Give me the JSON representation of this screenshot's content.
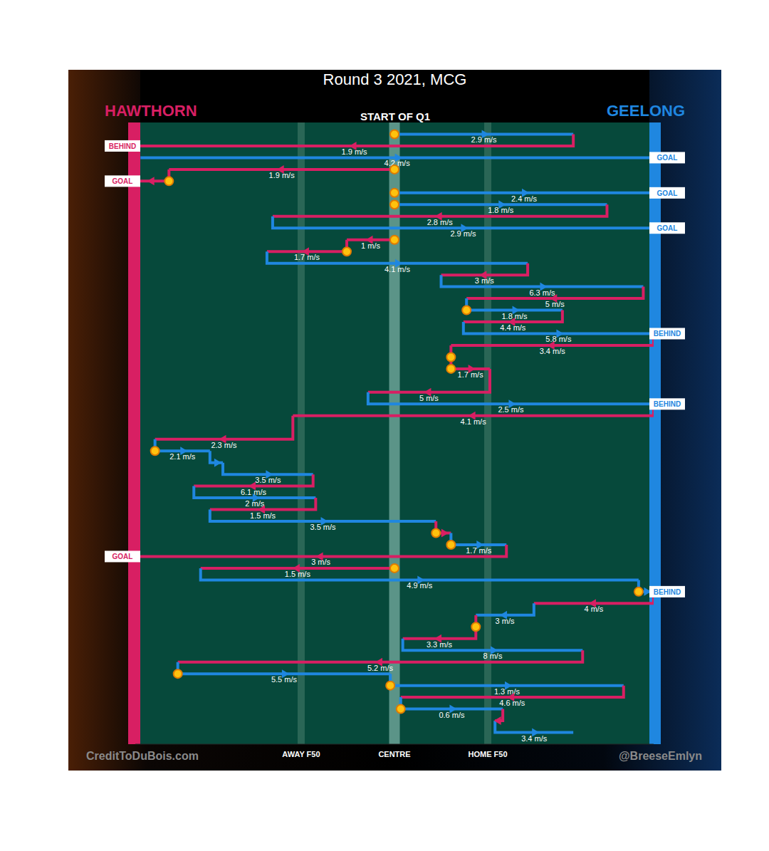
{
  "chart_data": {
    "type": "possession_chain",
    "title": "Round 3 2021, MCG",
    "subtitle": "START OF Q1",
    "series": [
      {
        "name": "HAWTHORN",
        "color": "#d81f63"
      },
      {
        "name": "GEELONG",
        "color": "#1f87e0"
      }
    ],
    "xlim": [
      0,
      100
    ],
    "xticks": [
      {
        "value": 32,
        "label": "AWAY F50"
      },
      {
        "value": 50,
        "label": "CENTRE"
      },
      {
        "value": 68,
        "label": "HOME F50"
      }
    ],
    "ylim": [
      -1,
      52
    ],
    "grid": true,
    "tick_labels": "x",
    "credits": [
      "CreditToDuBois.com",
      "@BreeseEmlyn"
    ],
    "chains": [
      {
        "team": "GEELONG",
        "y": 0,
        "x": [
          50,
          84.5
        ],
        "label": "2.9 m/s",
        "marker": "circle"
      },
      {
        "team": "HAWTHORN",
        "y": 1,
        "x": [
          84.5,
          0
        ],
        "label": "1.9 m/s",
        "outcome": "BEHIND"
      },
      {
        "team": "GEELONG",
        "y": 2,
        "x": [
          1,
          100
        ],
        "label": "4.2 m/s",
        "outcome": "GOAL"
      },
      {
        "team": "HAWTHORN",
        "y": 3,
        "x": [
          50,
          6.5
        ],
        "label": "1.9 m/s",
        "marker": "circle"
      },
      {
        "team": "HAWTHORN",
        "y": 4,
        "x": [
          6.5,
          0
        ],
        "marker": "circle",
        "outcome": "GOAL"
      },
      {
        "team": "GEELONG",
        "y": 5,
        "x": [
          50,
          100
        ],
        "label": "2.4 m/s",
        "marker": "circle",
        "outcome": "GOAL"
      },
      {
        "team": "GEELONG",
        "y": 6,
        "x": [
          50,
          91
        ],
        "label": "1.8 m/s",
        "marker": "circle"
      },
      {
        "team": "HAWTHORN",
        "y": 7,
        "x": [
          91,
          26.5
        ],
        "label": "2.8 m/s"
      },
      {
        "team": "GEELONG",
        "y": 8,
        "x": [
          26.5,
          100
        ],
        "label": "2.9 m/s",
        "outcome": "GOAL"
      },
      {
        "team": "HAWTHORN",
        "y": 9,
        "x": [
          50,
          40.8
        ],
        "label": "1 m/s",
        "marker": "circle"
      },
      {
        "team": "HAWTHORN",
        "y": 10,
        "x": [
          40.8,
          25.4
        ],
        "label": "1.7 m/s",
        "marker": "circle"
      },
      {
        "team": "GEELONG",
        "y": 11,
        "x": [
          25.4,
          75.7
        ],
        "label": "4.1 m/s"
      },
      {
        "team": "HAWTHORN",
        "y": 12,
        "x": [
          75.7,
          59
        ],
        "label": "3 m/s"
      },
      {
        "team": "GEELONG",
        "y": 13,
        "x": [
          59,
          98
        ],
        "label": "6.3 m/s"
      },
      {
        "team": "HAWTHORN",
        "y": 14,
        "x": [
          98,
          63.9
        ],
        "label": "5 m/s"
      },
      {
        "team": "GEELONG",
        "y": 15,
        "x": [
          63.9,
          82.4
        ],
        "label": "1.8 m/s",
        "marker": "circle"
      },
      {
        "team": "HAWTHORN",
        "y": 16,
        "x": [
          82.4,
          63.3
        ],
        "label": "4.4 m/s"
      },
      {
        "team": "GEELONG",
        "y": 17,
        "x": [
          63.3,
          100
        ],
        "label": "5.8 m/s",
        "outcome": "BEHIND"
      },
      {
        "team": "HAWTHORN",
        "y": 18,
        "x": [
          100,
          60.9
        ],
        "label": "3.4 m/s"
      },
      {
        "team": "HAWTHORN",
        "y": 19,
        "x": [
          60.9,
          60.9
        ],
        "marker": "circle"
      },
      {
        "team": "HAWTHORN",
        "y": 20,
        "x": [
          60.9,
          68.4
        ],
        "label": "1.7 m/s",
        "marker": "circle"
      },
      {
        "team": "HAWTHORN",
        "y": 22,
        "x": [
          68.4,
          44.9
        ],
        "label": "5 m/s"
      },
      {
        "team": "GEELONG",
        "y": 23,
        "x": [
          44.9,
          100
        ],
        "label": "2.5 m/s",
        "outcome": "BEHIND"
      },
      {
        "team": "HAWTHORN",
        "y": 24,
        "x": [
          100,
          30.4
        ],
        "label": "4.1 m/s"
      },
      {
        "team": "HAWTHORN",
        "y": 26,
        "x": [
          30.4,
          3.8
        ],
        "label": "2.3 m/s"
      },
      {
        "team": "GEELONG",
        "y": 27,
        "x": [
          3.8,
          14.4
        ],
        "label": "2.1 m/s",
        "marker": "circle"
      },
      {
        "team": "GEELONG",
        "y": 28,
        "x": [
          14.4,
          16.9
        ]
      },
      {
        "team": "GEELONG",
        "y": 29,
        "x": [
          16.9,
          34.3
        ],
        "label": "3.5 m/s"
      },
      {
        "team": "HAWTHORN",
        "y": 30,
        "x": [
          34.3,
          11.3
        ],
        "label": "6.1 m/s"
      },
      {
        "team": "GEELONG",
        "y": 31,
        "x": [
          11.3,
          34.8
        ],
        "label": "2 m/s"
      },
      {
        "team": "HAWTHORN",
        "y": 32,
        "x": [
          34.8,
          14.4
        ],
        "label": "1.5 m/s"
      },
      {
        "team": "GEELONG",
        "y": 33,
        "x": [
          14.4,
          58
        ],
        "label": "3.5 m/s"
      },
      {
        "team": "HAWTHORN",
        "y": 34,
        "x": [
          58,
          60.9
        ],
        "marker": "circle"
      },
      {
        "team": "GEELONG",
        "y": 35,
        "x": [
          60.9,
          71.6
        ],
        "label": "1.7 m/s",
        "marker": "circle"
      },
      {
        "team": "HAWTHORN",
        "y": 36,
        "x": [
          71.6,
          0
        ],
        "label": "3 m/s",
        "outcome": "GOAL"
      },
      {
        "team": "HAWTHORN",
        "y": 37,
        "x": [
          50,
          12.6
        ],
        "label": "1.5 m/s",
        "marker": "circle"
      },
      {
        "team": "GEELONG",
        "y": 38,
        "x": [
          12.6,
          97.1
        ],
        "label": "4.9 m/s"
      },
      {
        "team": "GEELONG",
        "y": 39,
        "x": [
          97.1,
          100
        ],
        "marker": "circle",
        "outcome": "BEHIND"
      },
      {
        "team": "HAWTHORN",
        "y": 40,
        "x": [
          100,
          76.9
        ],
        "label": "4 m/s"
      },
      {
        "team": "GEELONG",
        "y": 41,
        "x": [
          76.9,
          65.7
        ],
        "label": "3 m/s"
      },
      {
        "team": "HAWTHORN",
        "y": 42,
        "x": [
          65.7,
          65.7
        ],
        "marker": "circle"
      },
      {
        "team": "HAWTHORN",
        "y": 43,
        "x": [
          65.7,
          51.6
        ],
        "label": "3.3 m/s"
      },
      {
        "team": "GEELONG",
        "y": 44,
        "x": [
          51.6,
          86.3
        ],
        "label": "8 m/s"
      },
      {
        "team": "HAWTHORN",
        "y": 45,
        "x": [
          86.3,
          8.2
        ],
        "label": "5.2 m/s"
      },
      {
        "team": "GEELONG",
        "y": 46,
        "x": [
          8.2,
          49.2
        ],
        "label": "5.5 m/s",
        "marker": "circle"
      },
      {
        "team": "GEELONG",
        "y": 47,
        "x": [
          49.2,
          94.2
        ],
        "label": "1.3 m/s",
        "marker": "circle"
      },
      {
        "team": "HAWTHORN",
        "y": 48,
        "x": [
          94.2,
          51.2
        ],
        "label": "4.6 m/s"
      },
      {
        "team": "GEELONG",
        "y": 49,
        "x": [
          51.2,
          70.9
        ],
        "label": "0.6 m/s",
        "marker": "circle"
      },
      {
        "team": "HAWTHORN",
        "y": 50,
        "x": [
          70.9,
          69.4
        ]
      },
      {
        "team": "GEELONG",
        "y": 51,
        "x": [
          69.4,
          84.5
        ],
        "label": "3.4 m/s"
      }
    ]
  }
}
